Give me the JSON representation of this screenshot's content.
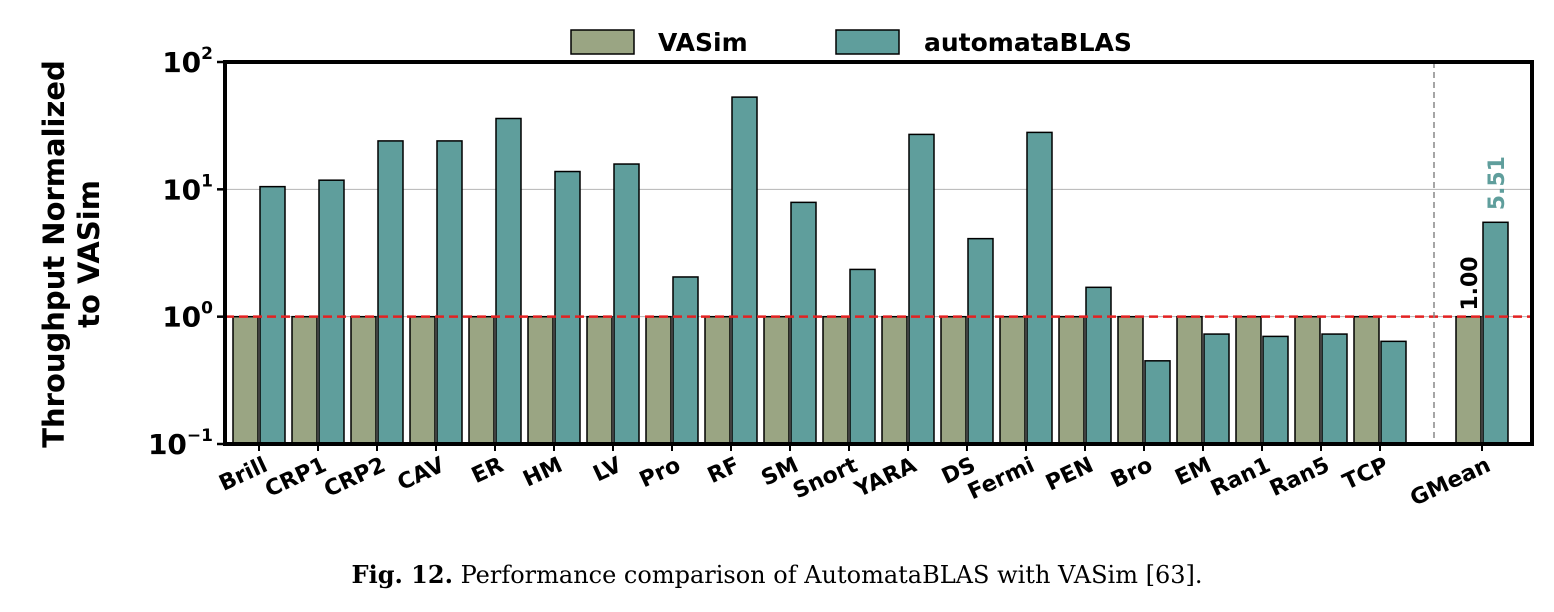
{
  "chart_data": {
    "type": "bar",
    "ylabel_line1": "Throughput Normalized",
    "ylabel_line2": "to VASim",
    "ylim": [
      0.1,
      100
    ],
    "yscale": "log",
    "yticks": [
      {
        "base": "10",
        "exp": "−1"
      },
      {
        "base": "10",
        "exp": "0"
      },
      {
        "base": "10",
        "exp": "1"
      },
      {
        "base": "10",
        "exp": "2"
      }
    ],
    "categories": [
      "Brill",
      "CRP1",
      "CRP2",
      "CAV",
      "ER",
      "HM",
      "LV",
      "Pro",
      "RF",
      "SM",
      "Snort",
      "YARA",
      "DS",
      "Fermi",
      "PEN",
      "Bro",
      "EM",
      "Ran1",
      "Ran5",
      "TCP",
      "GMean"
    ],
    "series": [
      {
        "name": "VASim",
        "color": "#9aa583",
        "values": [
          1,
          1,
          1,
          1,
          1,
          1,
          1,
          1,
          1,
          1,
          1,
          1,
          1,
          1,
          1,
          1,
          1,
          1,
          1,
          1,
          1
        ]
      },
      {
        "name": "automataBLAS",
        "color": "#5f9e9c",
        "values": [
          10.5,
          11.8,
          24,
          24,
          36,
          13.8,
          15.8,
          2.05,
          53,
          7.9,
          2.35,
          27,
          4.1,
          28,
          1.7,
          0.45,
          0.73,
          0.7,
          0.73,
          0.64,
          5.51
        ]
      }
    ],
    "reference_line": {
      "value": 1,
      "color": "#e32222"
    },
    "annotations": [
      {
        "text": "1.00",
        "color": "#000000"
      },
      {
        "text": "5.51",
        "color": "#5f9e9c"
      }
    ],
    "legend": "top-center",
    "grid": "horizontal major"
  },
  "caption": {
    "fig": "Fig. 12.",
    "text": "Performance comparison of AutomataBLAS with VASim [63]."
  }
}
